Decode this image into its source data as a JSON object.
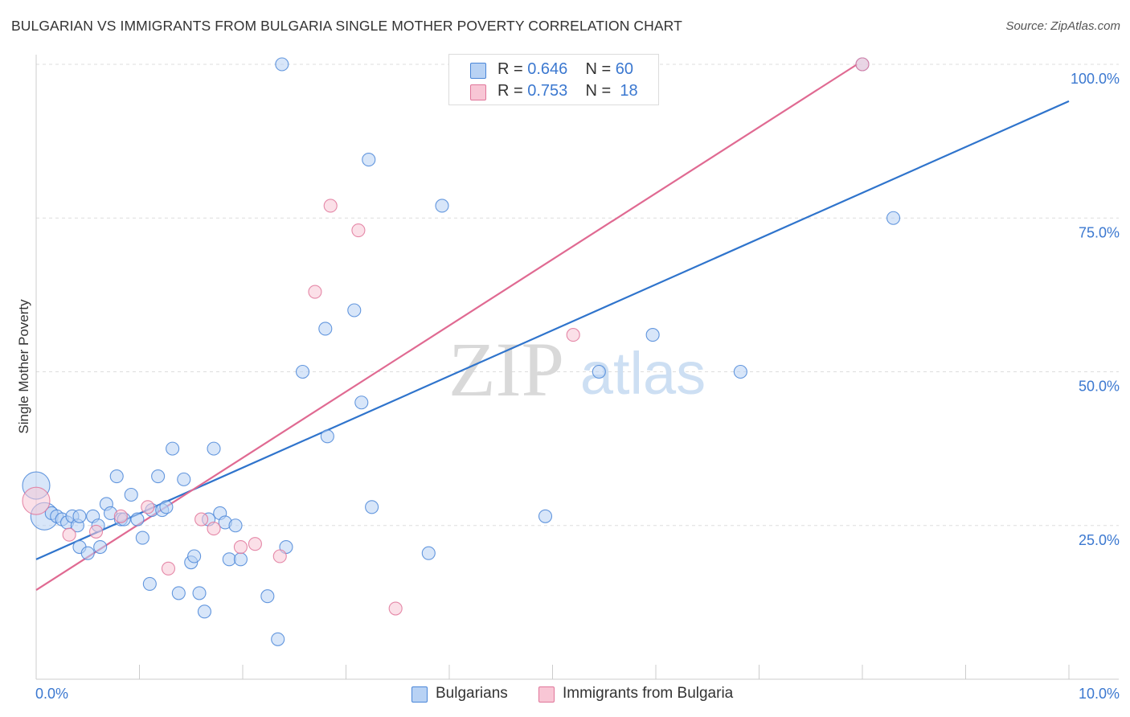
{
  "title": "BULGARIAN VS IMMIGRANTS FROM BULGARIA SINGLE MOTHER POVERTY CORRELATION CHART",
  "source": "Source: ZipAtlas.com",
  "watermark": {
    "zip": "ZIP",
    "atlas": "atlas"
  },
  "legend": {
    "r_label": "R =",
    "n_label": "N =",
    "items": [
      {
        "name": "Bulgarians",
        "r": "0.646",
        "n": "60",
        "color": "#4a86d8",
        "fill": "#b8d2f4"
      },
      {
        "name": "Immigrants from Bulgaria",
        "r": "0.753",
        "n": "18",
        "color": "#e0769a",
        "fill": "#f8c6d5"
      }
    ]
  },
  "chart_data": {
    "type": "scatter",
    "title": "BULGARIAN VS IMMIGRANTS FROM BULGARIA SINGLE MOTHER POVERTY CORRELATION CHART",
    "xlabel": "",
    "ylabel": "Single Mother Poverty",
    "xlim": [
      0,
      10
    ],
    "ylim": [
      0,
      100
    ],
    "x_tick_labels": [
      "0.0%",
      "10.0%"
    ],
    "y_tick_labels": [
      "25.0%",
      "50.0%",
      "75.0%",
      "100.0%"
    ],
    "y_ticks": [
      25,
      50,
      75,
      100
    ],
    "grid": true,
    "legend_position": "top-center",
    "series": [
      {
        "name": "Bulgarians",
        "color": "#4a86d8",
        "fill": "#b8d2f4",
        "trend": {
          "x": [
            0,
            10
          ],
          "y": [
            19.5,
            94
          ]
        },
        "points": [
          {
            "x": 0.0,
            "y": 31.5,
            "big": true
          },
          {
            "x": 0.08,
            "y": 26.5,
            "big": true
          },
          {
            "x": 0.15,
            "y": 27.0
          },
          {
            "x": 0.2,
            "y": 26.5
          },
          {
            "x": 0.25,
            "y": 26.0
          },
          {
            "x": 0.3,
            "y": 25.5
          },
          {
            "x": 0.35,
            "y": 26.5
          },
          {
            "x": 0.4,
            "y": 25.0
          },
          {
            "x": 0.42,
            "y": 21.5
          },
          {
            "x": 0.42,
            "y": 26.5
          },
          {
            "x": 0.5,
            "y": 20.5
          },
          {
            "x": 0.55,
            "y": 26.5
          },
          {
            "x": 0.6,
            "y": 25.0
          },
          {
            "x": 0.62,
            "y": 21.5
          },
          {
            "x": 0.68,
            "y": 28.5
          },
          {
            "x": 0.72,
            "y": 27.0
          },
          {
            "x": 0.78,
            "y": 33.0
          },
          {
            "x": 0.82,
            "y": 26.0
          },
          {
            "x": 0.85,
            "y": 26.0
          },
          {
            "x": 0.92,
            "y": 30.0
          },
          {
            "x": 0.98,
            "y": 26.0
          },
          {
            "x": 1.03,
            "y": 23.0
          },
          {
            "x": 1.1,
            "y": 15.5
          },
          {
            "x": 1.12,
            "y": 27.5
          },
          {
            "x": 1.18,
            "y": 33.0
          },
          {
            "x": 1.22,
            "y": 27.5
          },
          {
            "x": 1.26,
            "y": 28.0
          },
          {
            "x": 1.32,
            "y": 37.5
          },
          {
            "x": 1.38,
            "y": 14.0
          },
          {
            "x": 1.43,
            "y": 32.5
          },
          {
            "x": 1.5,
            "y": 19.0
          },
          {
            "x": 1.53,
            "y": 20.0
          },
          {
            "x": 1.58,
            "y": 14.0
          },
          {
            "x": 1.63,
            "y": 11.0
          },
          {
            "x": 1.67,
            "y": 26.0
          },
          {
            "x": 1.72,
            "y": 37.5
          },
          {
            "x": 1.78,
            "y": 27.0
          },
          {
            "x": 1.83,
            "y": 25.5
          },
          {
            "x": 1.87,
            "y": 19.5
          },
          {
            "x": 1.93,
            "y": 25.0
          },
          {
            "x": 1.98,
            "y": 19.5
          },
          {
            "x": 2.24,
            "y": 13.5
          },
          {
            "x": 2.34,
            "y": 6.5
          },
          {
            "x": 2.42,
            "y": 21.5
          },
          {
            "x": 2.38,
            "y": 100.0
          },
          {
            "x": 2.58,
            "y": 50.0
          },
          {
            "x": 2.8,
            "y": 57.0
          },
          {
            "x": 2.82,
            "y": 39.5
          },
          {
            "x": 3.08,
            "y": 60.0
          },
          {
            "x": 3.15,
            "y": 45.0
          },
          {
            "x": 3.22,
            "y": 84.5
          },
          {
            "x": 3.25,
            "y": 28.0
          },
          {
            "x": 3.8,
            "y": 20.5
          },
          {
            "x": 3.93,
            "y": 77.0
          },
          {
            "x": 4.93,
            "y": 26.5
          },
          {
            "x": 5.45,
            "y": 50.0
          },
          {
            "x": 5.97,
            "y": 56.0
          },
          {
            "x": 6.82,
            "y": 50.0
          },
          {
            "x": 8.0,
            "y": 100.0
          },
          {
            "x": 8.3,
            "y": 75.0
          }
        ]
      },
      {
        "name": "Immigrants from Bulgaria",
        "color": "#e0769a",
        "fill": "#f8c6d5",
        "trend": {
          "x": [
            0,
            7.95
          ],
          "y": [
            14.5,
            100
          ]
        },
        "points": [
          {
            "x": 0.0,
            "y": 29.0,
            "big": true
          },
          {
            "x": 0.32,
            "y": 23.5
          },
          {
            "x": 0.58,
            "y": 24.0
          },
          {
            "x": 0.82,
            "y": 26.5
          },
          {
            "x": 1.08,
            "y": 28.0
          },
          {
            "x": 1.28,
            "y": 18.0
          },
          {
            "x": 1.6,
            "y": 26.0
          },
          {
            "x": 1.72,
            "y": 24.5
          },
          {
            "x": 1.98,
            "y": 21.5
          },
          {
            "x": 2.12,
            "y": 22.0
          },
          {
            "x": 2.36,
            "y": 20.0
          },
          {
            "x": 2.7,
            "y": 63.0
          },
          {
            "x": 2.85,
            "y": 77.0
          },
          {
            "x": 3.12,
            "y": 73.0
          },
          {
            "x": 3.48,
            "y": 11.5
          },
          {
            "x": 4.98,
            "y": 100.0
          },
          {
            "x": 5.2,
            "y": 56.0
          },
          {
            "x": 8.0,
            "y": 100.0
          }
        ]
      }
    ]
  }
}
